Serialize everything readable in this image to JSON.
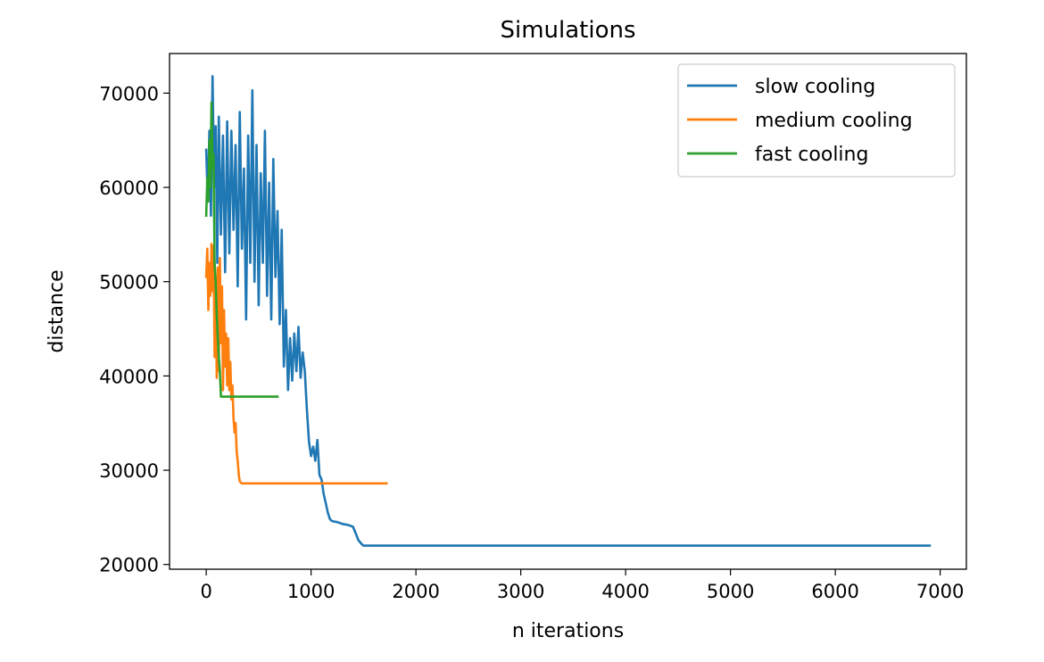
{
  "chart_data": {
    "type": "line",
    "title": "Simulations",
    "xlabel": "n iterations",
    "ylabel": "distance",
    "xlim": [
      -350,
      7250
    ],
    "ylim": [
      19500,
      74200
    ],
    "xticks": [
      0,
      1000,
      2000,
      3000,
      4000,
      5000,
      6000,
      7000
    ],
    "yticks": [
      20000,
      30000,
      40000,
      50000,
      60000,
      70000
    ],
    "grid": false,
    "legend_position": "top-right",
    "series": [
      {
        "name": "slow cooling",
        "color": "#1f77b4",
        "x": [
          0,
          15,
          30,
          45,
          60,
          75,
          90,
          105,
          120,
          140,
          160,
          180,
          200,
          220,
          240,
          260,
          280,
          300,
          320,
          340,
          360,
          380,
          400,
          420,
          440,
          460,
          480,
          500,
          520,
          540,
          560,
          580,
          600,
          620,
          640,
          660,
          680,
          700,
          720,
          740,
          760,
          780,
          800,
          820,
          840,
          860,
          880,
          900,
          920,
          940,
          960,
          980,
          1000,
          1020,
          1040,
          1060,
          1080,
          1100,
          1120,
          1140,
          1160,
          1180,
          1200,
          1250,
          1300,
          1350,
          1400,
          1430,
          1450,
          1480,
          1500,
          1550,
          1600,
          2000,
          3000,
          4000,
          5000,
          6000,
          6900
        ],
        "y": [
          64000,
          58500,
          66000,
          57000,
          71800,
          60000,
          66500,
          52000,
          67500,
          55000,
          65500,
          51000,
          67000,
          53000,
          66000,
          55500,
          64500,
          49500,
          68000,
          53500,
          62000,
          46000,
          65500,
          52000,
          70300,
          50000,
          64500,
          47500,
          61500,
          52000,
          66000,
          48500,
          60500,
          46000,
          63000,
          50500,
          57500,
          45500,
          55500,
          41000,
          47000,
          38500,
          44000,
          39500,
          44500,
          40500,
          45200,
          39800,
          42500,
          40500,
          36500,
          33000,
          31500,
          32500,
          31000,
          33200,
          29500,
          29000,
          27500,
          26500,
          25500,
          24800,
          24600,
          24500,
          24300,
          24200,
          24000,
          23200,
          22600,
          22200,
          22000,
          22000,
          22000,
          22000,
          22000,
          22000,
          22000,
          22000,
          22000
        ]
      },
      {
        "name": "medium cooling",
        "color": "#ff7f0e",
        "x": [
          0,
          10,
          20,
          30,
          40,
          50,
          60,
          70,
          80,
          90,
          100,
          110,
          120,
          130,
          140,
          150,
          160,
          170,
          180,
          190,
          200,
          210,
          220,
          230,
          240,
          250,
          260,
          270,
          280,
          290,
          300,
          310,
          320,
          340,
          360,
          380,
          400,
          600,
          800,
          1000,
          1200,
          1400,
          1600,
          1720
        ],
        "y": [
          50500,
          53500,
          47000,
          52000,
          48500,
          54000,
          49000,
          53800,
          42000,
          50500,
          39800,
          51500,
          40500,
          52500,
          43500,
          49500,
          38500,
          47000,
          41000,
          44500,
          39000,
          44000,
          38500,
          41500,
          37500,
          39000,
          35500,
          34000,
          35000,
          32000,
          31000,
          29500,
          28800,
          28600,
          28600,
          28600,
          28600,
          28600,
          28600,
          28600,
          28600,
          28600,
          28600,
          28600
        ]
      },
      {
        "name": "fast cooling",
        "color": "#2ca02c",
        "x": [
          0,
          10,
          20,
          30,
          40,
          50,
          60,
          70,
          80,
          90,
          100,
          110,
          120,
          130,
          140,
          160,
          200,
          300,
          400,
          500,
          600,
          680
        ],
        "y": [
          57000,
          61000,
          58500,
          65000,
          60000,
          69000,
          62000,
          63500,
          52000,
          50000,
          46500,
          44000,
          42000,
          40500,
          37800,
          37800,
          37800,
          37800,
          37800,
          37800,
          37800,
          37800
        ]
      }
    ]
  }
}
